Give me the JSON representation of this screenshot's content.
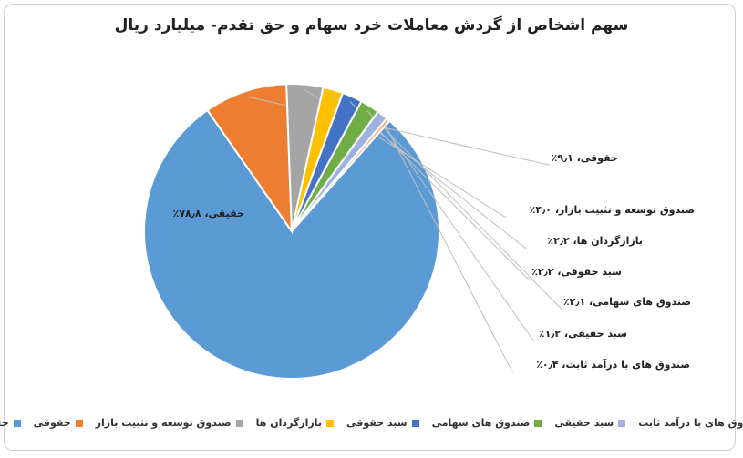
{
  "chart_data": {
    "type": "pie",
    "title": "سهم اشخاص از گردش معاملات خرد سهام و حق تقدم- میلیارد ریال",
    "legend_position": "bottom",
    "slices": [
      {
        "name": "حقیقی",
        "value": 78.8,
        "label": "حقیقی، ۷۸٫۸٪",
        "color": "#5b9bd5"
      },
      {
        "name": "حقوقی",
        "value": 9.1,
        "label": "حقوقی، ۹٫۱٪",
        "color": "#ed7d31"
      },
      {
        "name": "صندوق توسعه و تثبیت بازار",
        "value": 4.0,
        "label": "صندوق توسعه و تثبیت بازار، ۴٫۰٪",
        "color": "#a5a5a5"
      },
      {
        "name": "بازارگردان ها",
        "value": 2.2,
        "label": "بازارگردان ها، ۲٫۲٪",
        "color": "#ffc000"
      },
      {
        "name": "سبد حقوقی",
        "value": 2.2,
        "label": "سبد حقوقی، ۲٫۲٪",
        "color": "#4472c4"
      },
      {
        "name": "صندوق های سهامی",
        "value": 2.1,
        "label": "صندوق های سهامی، ۲٫۱٪",
        "color": "#70ad47"
      },
      {
        "name": "سبد حقیقی",
        "value": 1.2,
        "label": "سبد حقیقی، ۱٫۲٪",
        "color": "#9eb1e0"
      },
      {
        "name": "صندوق های با درآمد ثابت",
        "value": 0.4,
        "label": "صندوق های با درآمد ثابت، ۰٫۴٪",
        "color": "#f4b183"
      }
    ]
  }
}
